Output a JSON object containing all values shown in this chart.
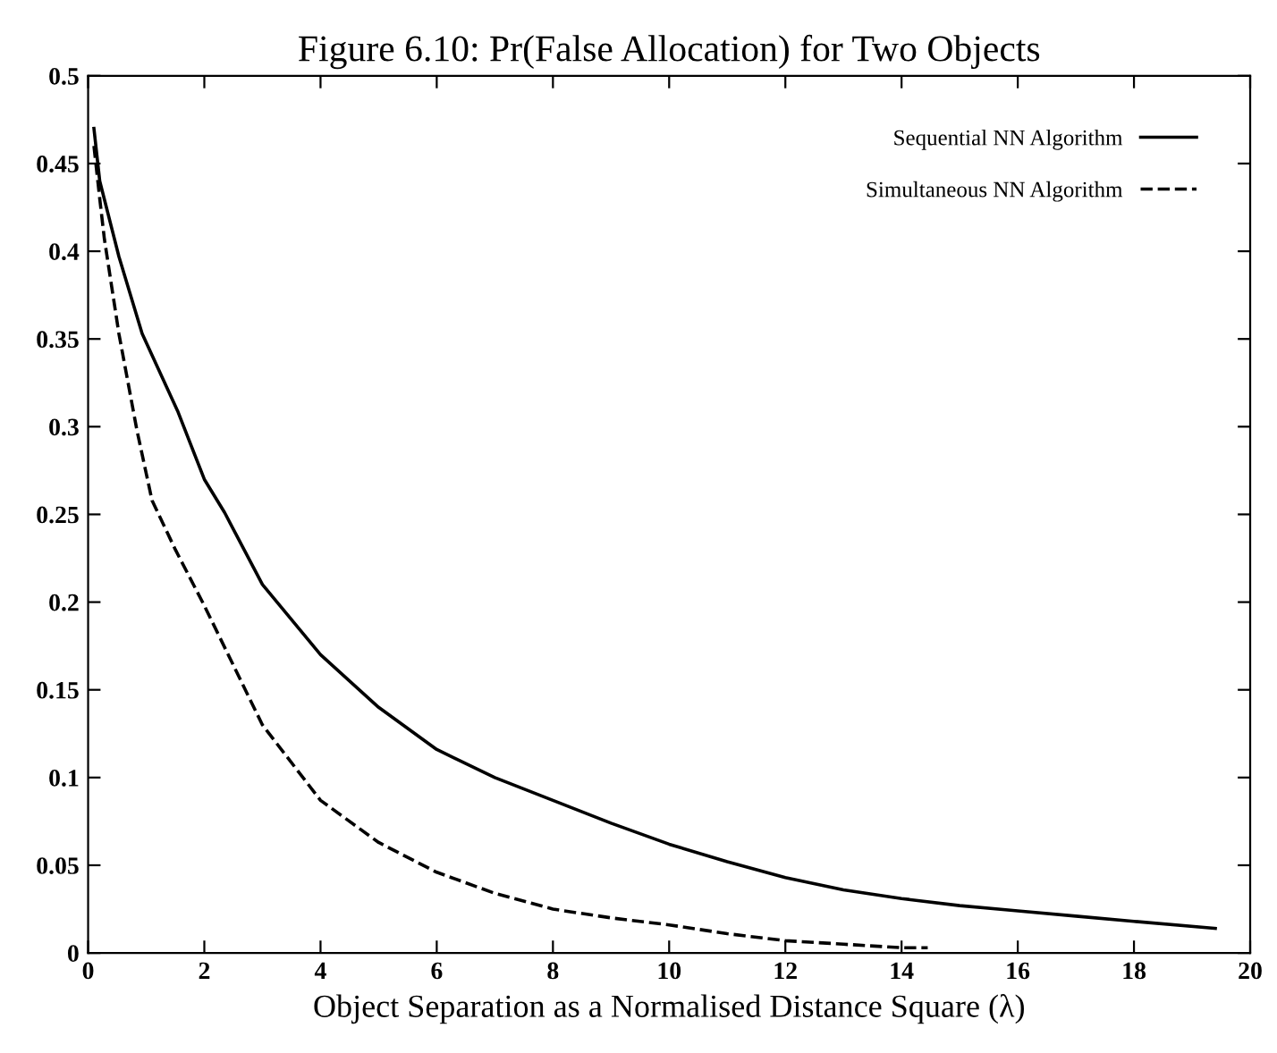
{
  "chart_data": {
    "type": "line",
    "title": "Figure 6.10: Pr(False Allocation) for Two Objects",
    "xlabel": "Object Separation as a Normalised Distance Square (λ)",
    "xlim": [
      0,
      20
    ],
    "ylim": [
      0,
      0.5
    ],
    "xticks": [
      0,
      2,
      4,
      6,
      8,
      10,
      12,
      14,
      16,
      18,
      20
    ],
    "yticks": [
      0,
      0.05,
      0.1,
      0.15,
      0.2,
      0.25,
      0.3,
      0.35,
      0.4,
      0.45,
      0.5
    ],
    "grid": false,
    "legend": "top right",
    "marker": "none",
    "series": [
      {
        "name": "Sequential NN Algorithm",
        "color": "#000000",
        "line_style": "solid",
        "x": [
          0.1,
          0.2,
          0.53,
          0.93,
          1.54,
          2,
          2.35,
          3,
          4,
          5,
          6,
          7,
          8,
          9,
          10,
          11,
          12,
          13,
          14,
          15,
          16,
          17,
          18,
          19.4
        ],
        "values": [
          0.47,
          0.44,
          0.397,
          0.353,
          0.309,
          0.27,
          0.251,
          0.21,
          0.17,
          0.14,
          0.116,
          0.1,
          0.087,
          0.074,
          0.062,
          0.052,
          0.043,
          0.036,
          0.031,
          0.027,
          0.024,
          0.021,
          0.018,
          0.014
        ]
      },
      {
        "name": "Simultaneous NN Algorithm",
        "color": "#000000",
        "line_style": "dashed",
        "x": [
          0.1,
          0.2,
          0.28,
          0.53,
          0.84,
          1.1,
          1.5,
          2,
          3,
          4,
          5,
          6,
          7,
          8,
          9,
          10,
          11,
          12,
          13,
          14,
          14.45
        ],
        "values": [
          0.46,
          0.43,
          0.407,
          0.353,
          0.298,
          0.258,
          0.23,
          0.198,
          0.13,
          0.087,
          0.063,
          0.046,
          0.034,
          0.025,
          0.02,
          0.016,
          0.011,
          0.007,
          0.005,
          0.003,
          0.003
        ]
      }
    ]
  }
}
